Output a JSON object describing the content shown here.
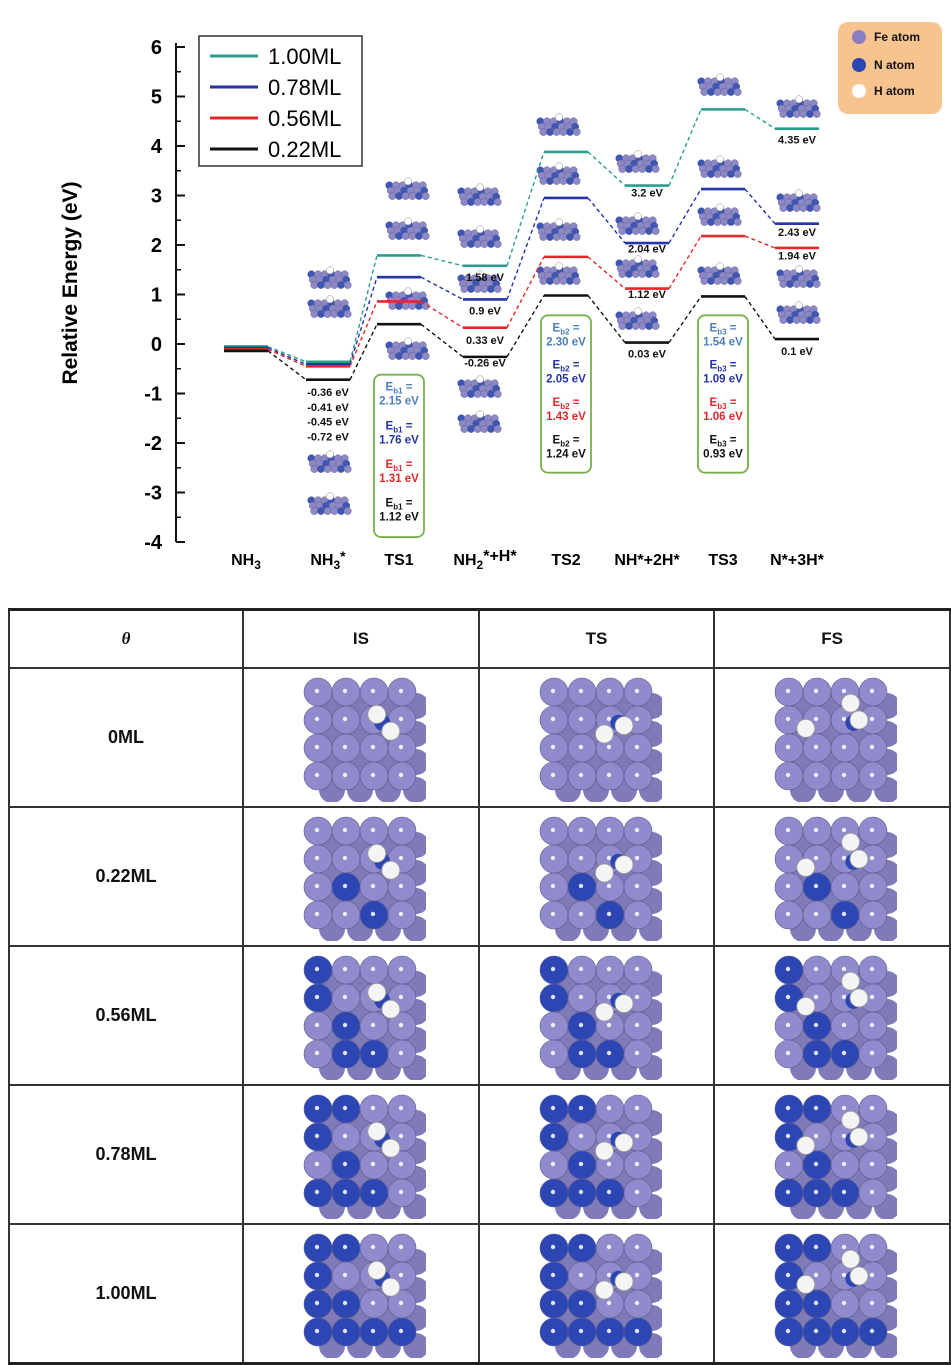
{
  "chart_data": {
    "type": "line",
    "ylabel": "Relative Energy (eV)",
    "ylim": [
      -4,
      6
    ],
    "yticks": [
      "6",
      "5",
      "4",
      "3",
      "2",
      "1",
      "0",
      "-1",
      "-2",
      "-3",
      "-4"
    ],
    "categories": [
      {
        "label": "NH",
        "sub": "3",
        "sup": ""
      },
      {
        "label": "NH",
        "sub": "3",
        "sup": "*"
      },
      {
        "label": "TS1",
        "sub": "",
        "sup": ""
      },
      {
        "label": "NH",
        "sub": "2",
        "sup": "*+H*"
      },
      {
        "label": "TS2",
        "sub": "",
        "sup": ""
      },
      {
        "label": "NH*+2H*",
        "sub": "",
        "sup": ""
      },
      {
        "label": "TS3",
        "sub": "",
        "sup": ""
      },
      {
        "label": "N*+3H*",
        "sub": "",
        "sup": ""
      }
    ],
    "series": [
      {
        "name": "1.00ML",
        "color": "#2a9d8f",
        "values": [
          -0.05,
          -0.36,
          1.79,
          1.58,
          3.88,
          3.2,
          4.74,
          4.35
        ]
      },
      {
        "name": "0.78ML",
        "color": "#2433a6",
        "values": [
          -0.08,
          -0.41,
          1.35,
          0.9,
          2.95,
          2.04,
          3.13,
          2.43
        ]
      },
      {
        "name": "0.56ML",
        "color": "#e3272b",
        "values": [
          -0.11,
          -0.45,
          0.86,
          0.33,
          1.76,
          1.12,
          2.18,
          1.94
        ]
      },
      {
        "name": "0.22ML",
        "color": "#111111",
        "values": [
          -0.14,
          -0.72,
          0.4,
          -0.26,
          0.98,
          0.03,
          0.96,
          0.1
        ]
      }
    ],
    "value_labels": [
      {
        "text": "-0.36 eV",
        "x": 1,
        "y": -1.05
      },
      {
        "text": "-0.41 eV",
        "x": 1,
        "y": -1.35
      },
      {
        "text": "-0.45 eV",
        "x": 1,
        "y": -1.65
      },
      {
        "text": "-0.72 eV",
        "x": 1,
        "y": -1.95
      },
      {
        "text": "1.58 eV",
        "x": 3,
        "y": 1.27
      },
      {
        "text": "0.9 eV",
        "x": 3,
        "y": 0.6
      },
      {
        "text": "0.33 eV",
        "x": 3,
        "y": 0.0
      },
      {
        "text": "-0.26 eV",
        "x": 3,
        "y": -0.45
      },
      {
        "text": "3.2 eV",
        "x": 5,
        "y": 2.98
      },
      {
        "text": "2.04 eV",
        "x": 5,
        "y": 1.85
      },
      {
        "text": "1.12 eV",
        "x": 5,
        "y": 0.93
      },
      {
        "text": "0.03 eV",
        "x": 5,
        "y": -0.27
      },
      {
        "text": "4.35 eV",
        "x": 7,
        "y": 4.05
      },
      {
        "text": "2.43 eV",
        "x": 7,
        "y": 2.18
      },
      {
        "text": "1.94 eV",
        "x": 7,
        "y": 1.71
      },
      {
        "text": "0.1 eV",
        "x": 7,
        "y": -0.22
      }
    ],
    "barrier_boxes": [
      {
        "x": 2,
        "top": -0.62,
        "bottom": -3.9,
        "entries": [
          {
            "text": "2.15 eV",
            "color": "#4a7fb8",
            "sub": "b1"
          },
          {
            "text": "1.76 eV",
            "color": "#2433a6",
            "sub": "b1"
          },
          {
            "text": "1.31 eV",
            "color": "#e3272b",
            "sub": "b1"
          },
          {
            "text": "1.12 eV",
            "color": "#111111",
            "sub": "b1"
          }
        ]
      },
      {
        "x": 4,
        "top": 0.58,
        "bottom": -2.6,
        "entries": [
          {
            "text": "2.30 eV",
            "color": "#4a7fb8",
            "sub": "b2"
          },
          {
            "text": "2.05 eV",
            "color": "#2433a6",
            "sub": "b2"
          },
          {
            "text": "1.43 eV",
            "color": "#e3272b",
            "sub": "b2"
          },
          {
            "text": "1.24 eV",
            "color": "#111111",
            "sub": "b2"
          }
        ]
      },
      {
        "x": 6,
        "top": 0.58,
        "bottom": -2.6,
        "entries": [
          {
            "text": "1.54 eV",
            "color": "#4a7fb8",
            "sub": "b3"
          },
          {
            "text": "1.09 eV",
            "color": "#2433a6",
            "sub": "b3"
          },
          {
            "text": "1.06 eV",
            "color": "#e3272b",
            "sub": "b3"
          },
          {
            "text": "0.93 eV",
            "color": "#111111",
            "sub": "b3"
          }
        ]
      }
    ],
    "barrier_prefix": "E",
    "legend_position": "top-left"
  },
  "atom_legend": [
    {
      "label": "Fe atom",
      "color": "#8a7fc4"
    },
    {
      "label": "N atom",
      "color": "#2b46b0"
    },
    {
      "label": "H atom",
      "color": "#ffffff"
    }
  ],
  "table": {
    "headers": [
      "θ",
      "IS",
      "TS",
      "FS"
    ],
    "rows": [
      {
        "coverage": "0ML",
        "n_sites": 0
      },
      {
        "coverage": "0.22ML",
        "n_sites": 2
      },
      {
        "coverage": "0.56ML",
        "n_sites": 5
      },
      {
        "coverage": "0.78ML",
        "n_sites": 7
      },
      {
        "coverage": "1.00ML",
        "n_sites": 9
      }
    ]
  }
}
